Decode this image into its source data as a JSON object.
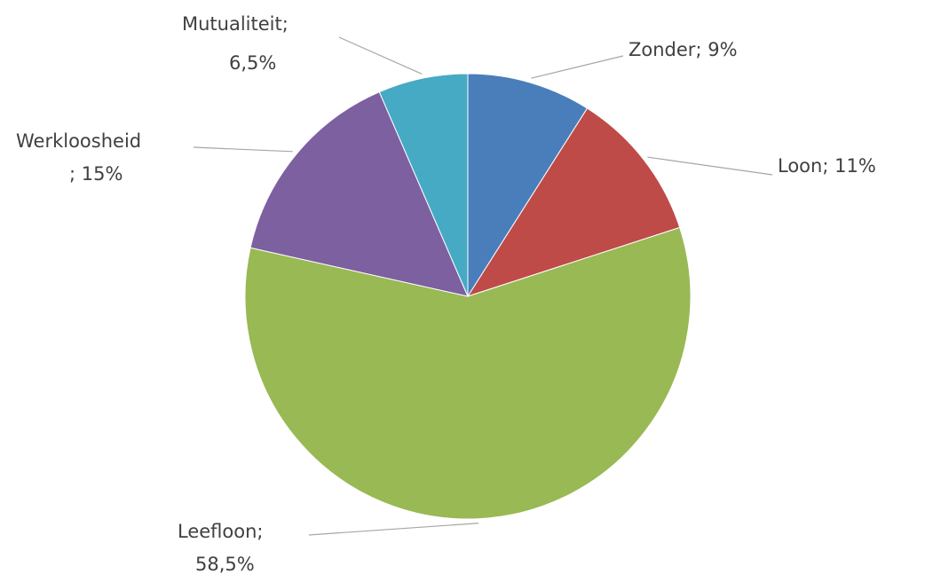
{
  "chart_data": {
    "type": "pie",
    "categories": [
      "Zonder",
      "Loon",
      "Leefloon",
      "Werkloosheid",
      "Mutualiteit"
    ],
    "values": [
      9,
      11,
      58.5,
      15,
      6.5
    ],
    "value_labels": [
      "9%",
      "11%",
      "58,5%",
      "15%",
      "6,5%"
    ],
    "label_separator": "; ",
    "colors": [
      "#4a7ebb",
      "#be4b48",
      "#98b954",
      "#7d60a0",
      "#46aac5"
    ]
  }
}
